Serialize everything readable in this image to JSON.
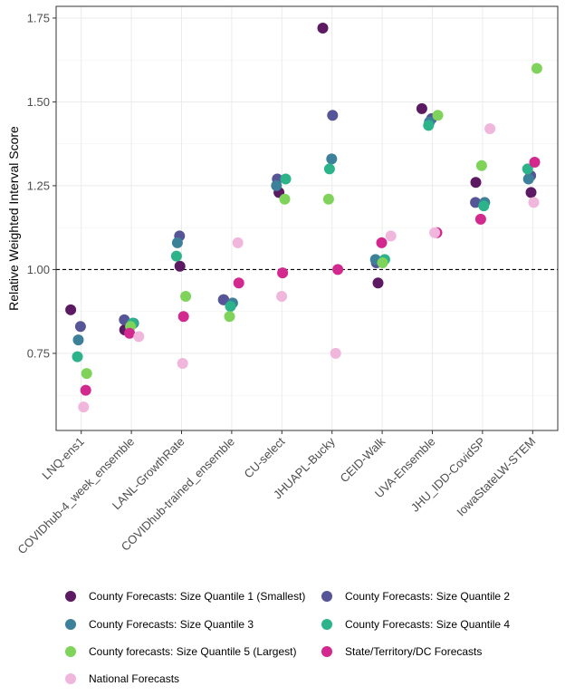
{
  "chart_data": {
    "type": "scatter",
    "ylabel": "Relative Weighted Interval Score",
    "xlabel": "",
    "ylim": [
      0.52,
      1.785
    ],
    "yticks": [
      0.75,
      1.0,
      1.25,
      1.5,
      1.75
    ],
    "ytick_labels": [
      "0.75",
      "1.00",
      "1.25",
      "1.50",
      "1.75"
    ],
    "reference_line": 1.0,
    "grid": true,
    "legend_position": "bottom",
    "categories": [
      "LNQ-ens1",
      "COVIDhub-4_week_ensemble",
      "LANL-GrowthRate",
      "COVIDhub-trained_ensemble",
      "CU-select",
      "JHUAPL-Bucky",
      "CEID-Walk",
      "UVA-Ensemble",
      "JHU_IDD-CovidSP",
      "IowaStateLW-STEM"
    ],
    "series": [
      {
        "name": "County Forecasts: Size Quantile 1 (Smallest)",
        "color": "#5c1a63",
        "values": [
          0.88,
          0.82,
          1.01,
          0.91,
          1.23,
          1.72,
          0.96,
          1.48,
          1.26,
          1.23
        ]
      },
      {
        "name": "County Forecasts: Size Quantile 2",
        "color": "#555598",
        "values": [
          0.83,
          0.85,
          1.1,
          0.91,
          1.27,
          1.46,
          1.02,
          1.45,
          1.2,
          1.28
        ]
      },
      {
        "name": "County Forecasts: Size Quantile 3",
        "color": "#3d8099",
        "values": [
          0.79,
          0.84,
          1.08,
          0.9,
          1.25,
          1.33,
          1.03,
          1.44,
          1.2,
          1.27
        ]
      },
      {
        "name": "County Forecasts: Size Quantile 4",
        "color": "#2db38a",
        "values": [
          0.74,
          0.84,
          1.04,
          0.89,
          1.27,
          1.3,
          1.03,
          1.43,
          1.19,
          1.3
        ]
      },
      {
        "name": "County forecasts: Size Quantile 5 (Largest)",
        "color": "#7fd35a",
        "values": [
          0.69,
          0.83,
          0.92,
          0.86,
          1.21,
          1.21,
          1.02,
          1.46,
          1.31,
          1.6
        ]
      },
      {
        "name": "State/Territory/DC Forecasts",
        "color": "#d3298f",
        "values": [
          0.64,
          0.81,
          0.86,
          0.96,
          0.99,
          1.0,
          1.08,
          1.11,
          1.15,
          1.32
        ]
      },
      {
        "name": "National Forecasts",
        "color": "#f0b6dc",
        "values": [
          0.59,
          0.8,
          0.72,
          1.08,
          0.92,
          0.75,
          1.1,
          1.11,
          1.42,
          1.2
        ]
      }
    ]
  }
}
